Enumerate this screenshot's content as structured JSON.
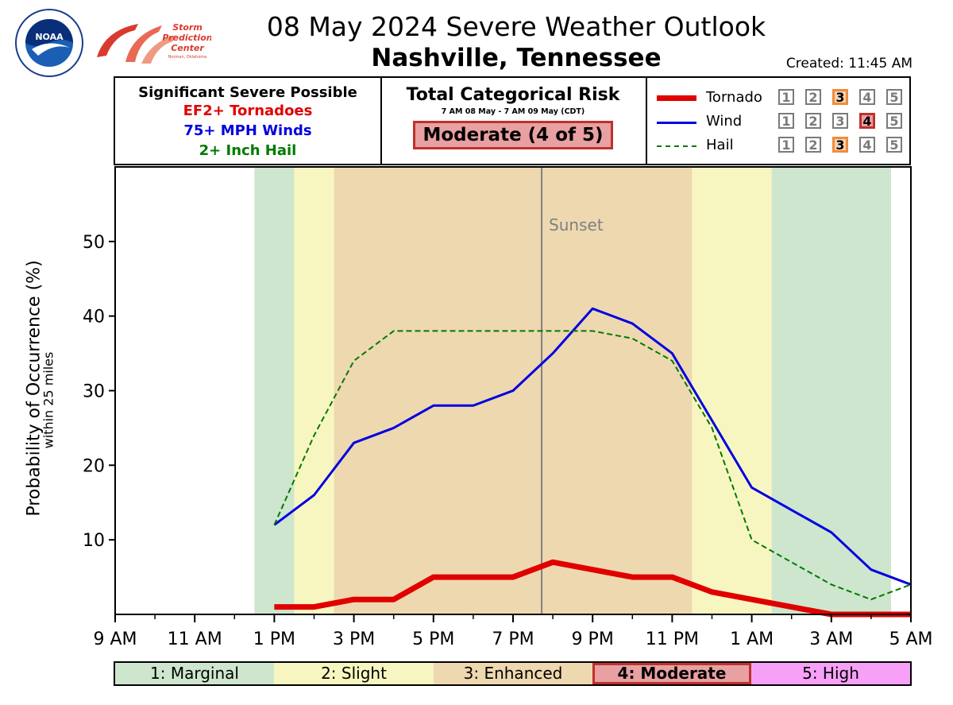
{
  "header": {
    "title": "08 May 2024 Severe Weather Outlook",
    "subtitle": "Nashville, Tennessee",
    "created": "Created: 11:45 AM",
    "logos": [
      "noaa-logo",
      "spc-logo"
    ],
    "spc_logo_text": "Storm Prediction Center Norman, Oklahoma"
  },
  "significant": {
    "heading": "Significant Severe Possible",
    "lines": [
      {
        "text": "EF2+ Tornadoes",
        "color": "#e00000"
      },
      {
        "text": "75+ MPH Winds",
        "color": "#0000e0"
      },
      {
        "text": "2+ Inch Hail",
        "color": "#007a00"
      }
    ]
  },
  "total_risk": {
    "title": "Total Categorical Risk",
    "dates": "7 AM 08 May - 7 AM 09 May (CDT)",
    "level": "Moderate (4 of 5)"
  },
  "hazard_legend": [
    {
      "name": "Tornado",
      "color": "#e00000",
      "style": "thick",
      "level": 3
    },
    {
      "name": "Wind",
      "color": "#0000e0",
      "style": "solid",
      "level": 4
    },
    {
      "name": "Hail",
      "color": "#007a00",
      "style": "dashed",
      "level": 3
    }
  ],
  "level_numbers": [
    "1",
    "2",
    "3",
    "4",
    "5"
  ],
  "chart_data": {
    "type": "line",
    "ylabel": "Probability of Occurrence (%)",
    "ylabel_sub": "within 25 miles",
    "ylim": [
      0,
      60
    ],
    "yticks": [
      10,
      20,
      30,
      40,
      50
    ],
    "xlim": [
      9,
      29
    ],
    "xticks_major": [
      {
        "x": 9,
        "label": "9 AM"
      },
      {
        "x": 11,
        "label": "11 AM"
      },
      {
        "x": 13,
        "label": "1 PM"
      },
      {
        "x": 15,
        "label": "3 PM"
      },
      {
        "x": 17,
        "label": "5 PM"
      },
      {
        "x": 19,
        "label": "7 PM"
      },
      {
        "x": 21,
        "label": "9 PM"
      },
      {
        "x": 23,
        "label": "11 PM"
      },
      {
        "x": 25,
        "label": "1 AM"
      },
      {
        "x": 27,
        "label": "3 AM"
      },
      {
        "x": 29,
        "label": "5 AM"
      }
    ],
    "series": [
      {
        "name": "Tornado",
        "color": "#e00000",
        "x": [
          13,
          14,
          15,
          16,
          17,
          18,
          19,
          20,
          21,
          22,
          23,
          24,
          25,
          26,
          27,
          28,
          29
        ],
        "y": [
          1,
          1,
          2,
          2,
          5,
          5,
          5,
          7,
          6,
          5,
          5,
          3,
          2,
          1,
          0,
          0,
          0
        ]
      },
      {
        "name": "Wind",
        "color": "#0000e0",
        "x": [
          13,
          14,
          15,
          16,
          17,
          18,
          19,
          20,
          21,
          22,
          23,
          24,
          25,
          26,
          27,
          28,
          29
        ],
        "y": [
          12,
          16,
          23,
          25,
          28,
          28,
          30,
          35,
          41,
          39,
          35,
          26,
          17,
          14,
          11,
          6,
          4
        ]
      },
      {
        "name": "Hail",
        "color": "#007a00",
        "x": [
          13,
          14,
          15,
          16,
          17,
          18,
          19,
          20,
          21,
          22,
          23,
          24,
          25,
          26,
          27,
          28,
          29
        ],
        "y": [
          12,
          24,
          34,
          38,
          38,
          38,
          38,
          38,
          38,
          37,
          34,
          25,
          10,
          7,
          4,
          2,
          4
        ]
      }
    ],
    "risk_bands": [
      {
        "from": 12.5,
        "to": 13.5,
        "level": "Marginal",
        "color": "#cde6cd"
      },
      {
        "from": 13.5,
        "to": 14.5,
        "level": "Slight",
        "color": "#f8f6c0"
      },
      {
        "from": 14.5,
        "to": 23.5,
        "level": "Enhanced",
        "color": "#eed8b0"
      },
      {
        "from": 23.5,
        "to": 25.5,
        "level": "Slight",
        "color": "#f8f6c0"
      },
      {
        "from": 25.5,
        "to": 28.5,
        "level": "Marginal",
        "color": "#cde6cd"
      }
    ],
    "sunset": {
      "x": 19.72,
      "label": "Sunset"
    }
  },
  "risk_legend": [
    {
      "label": "1: Marginal",
      "color": "#cde6cd"
    },
    {
      "label": "2: Slight",
      "color": "#f8f6c0"
    },
    {
      "label": "3: Enhanced",
      "color": "#eed8b0"
    },
    {
      "label": "4: Moderate",
      "color": "#e8a0a2"
    },
    {
      "label": "5: High",
      "color": "#f7a0f7"
    }
  ]
}
